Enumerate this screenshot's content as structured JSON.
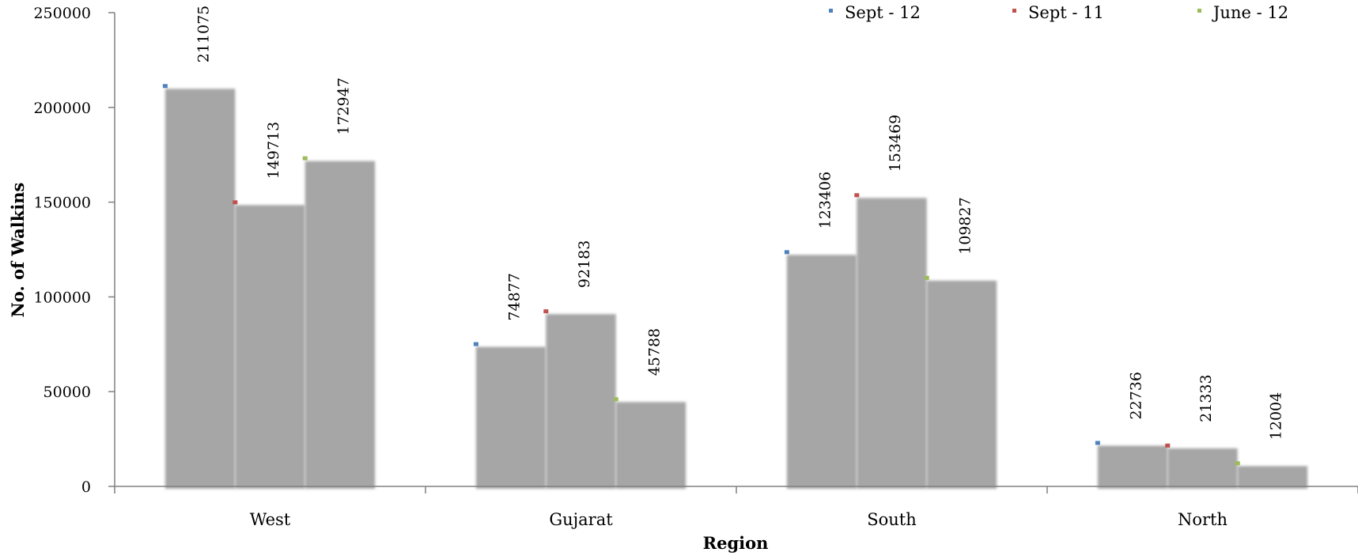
{
  "chart_data": {
    "type": "bar",
    "title": "",
    "xlabel": "Region",
    "ylabel": "No. of Walkins",
    "ylim": [
      0,
      250000
    ],
    "yticks": [
      0,
      50000,
      100000,
      150000,
      200000,
      250000
    ],
    "categories": [
      "West",
      "Gujarat",
      "South",
      "North"
    ],
    "series": [
      {
        "name": "Sept - 12",
        "color": "#4f81bd",
        "values": [
          211075,
          74877,
          123406,
          22736
        ]
      },
      {
        "name": "Sept - 11",
        "color": "#c0504d",
        "values": [
          149713,
          92183,
          153469,
          21333
        ]
      },
      {
        "name": "June - 12",
        "color": "#9bbb59",
        "values": [
          172947,
          45788,
          109827,
          12004
        ]
      }
    ],
    "bar_color": "#a6a6a6",
    "legend_position": "top-right",
    "grid": false
  }
}
